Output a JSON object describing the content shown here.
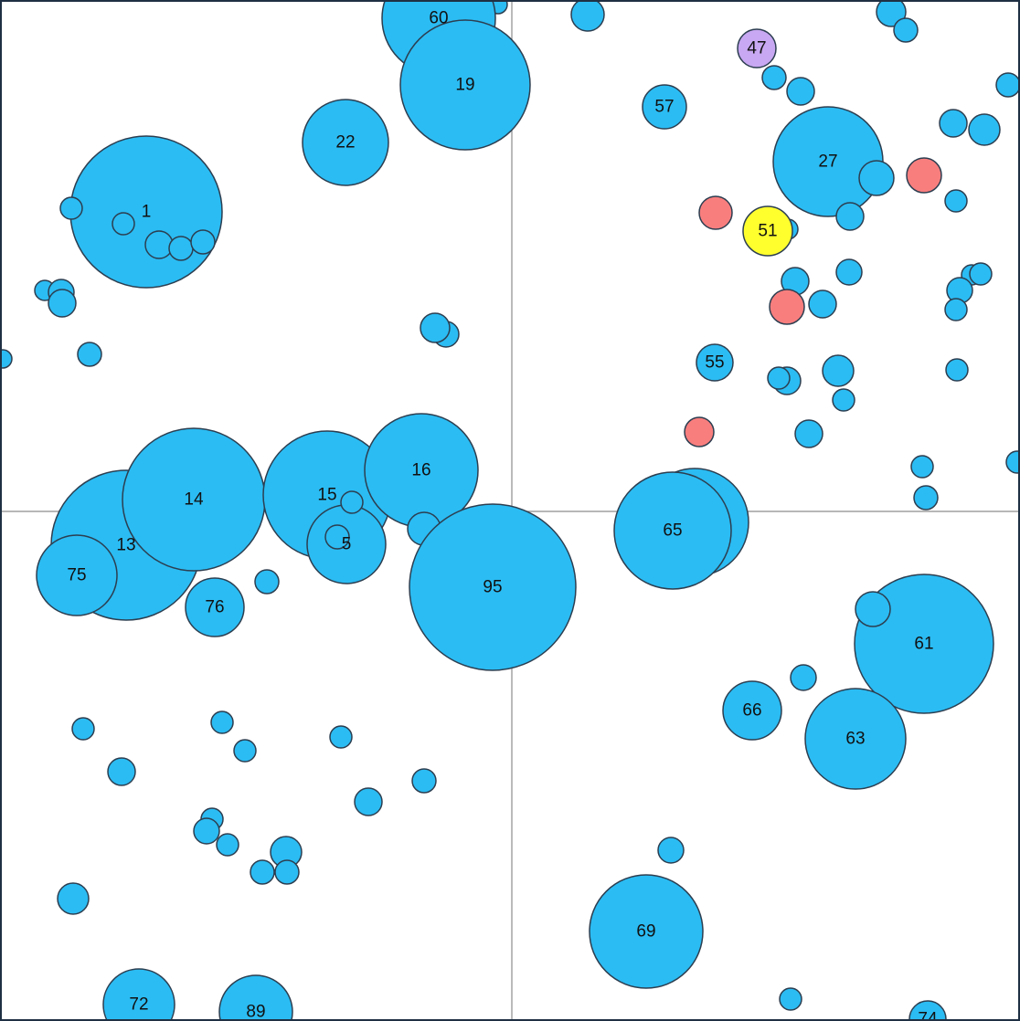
{
  "chart_data": {
    "type": "scatter",
    "variant": "bubble",
    "xlim": [
      0,
      1116
    ],
    "ylim": [
      0,
      1118
    ],
    "y_axis_direction": "down",
    "quadrant_lines": {
      "x": 560,
      "y": 560
    },
    "grid": false,
    "legend": "none",
    "colors": {
      "default": "#2BBCF3",
      "highlight_red": "#F87E7E",
      "highlight_yellow": "#FFFF2E",
      "highlight_purple": "#C8A8F2",
      "stroke": "#2C3E50",
      "quadrant_line": "#8C8C8C",
      "border": "#1F3044"
    },
    "points": [
      {
        "x": 545,
        "y": 5,
        "r": 10
      },
      {
        "x": 480,
        "y": 20,
        "r": 62,
        "label": "60"
      },
      {
        "x": 509,
        "y": 93,
        "r": 71,
        "label": "19"
      },
      {
        "x": 378,
        "y": 156,
        "r": 47,
        "label": "22"
      },
      {
        "x": 160,
        "y": 232,
        "r": 83,
        "label": "1"
      },
      {
        "x": 78,
        "y": 228,
        "r": 12
      },
      {
        "x": 135,
        "y": 245,
        "r": 12
      },
      {
        "x": 174,
        "y": 268,
        "r": 15
      },
      {
        "x": 198,
        "y": 272,
        "r": 13
      },
      {
        "x": 222,
        "y": 265,
        "r": 13
      },
      {
        "x": 49,
        "y": 318,
        "r": 11
      },
      {
        "x": 67,
        "y": 320,
        "r": 14
      },
      {
        "x": 68,
        "y": 332,
        "r": 15
      },
      {
        "x": 3,
        "y": 393,
        "r": 10
      },
      {
        "x": 98,
        "y": 388,
        "r": 13
      },
      {
        "x": 488,
        "y": 366,
        "r": 14
      },
      {
        "x": 476,
        "y": 359,
        "r": 16
      },
      {
        "x": 138,
        "y": 597,
        "r": 82,
        "label": "13"
      },
      {
        "x": 212,
        "y": 547,
        "r": 78,
        "label": "14"
      },
      {
        "x": 84,
        "y": 630,
        "r": 44,
        "label": "75"
      },
      {
        "x": 235,
        "y": 665,
        "r": 32,
        "label": "76"
      },
      {
        "x": 292,
        "y": 637,
        "r": 13
      },
      {
        "x": 358,
        "y": 542,
        "r": 70,
        "label": "15"
      },
      {
        "x": 379,
        "y": 596,
        "r": 43,
        "label": "5"
      },
      {
        "x": 385,
        "y": 550,
        "r": 12
      },
      {
        "x": 369,
        "y": 588,
        "r": 13
      },
      {
        "x": 461,
        "y": 515,
        "r": 62,
        "label": "16"
      },
      {
        "x": 464,
        "y": 579,
        "r": 18
      },
      {
        "x": 539,
        "y": 643,
        "r": 91,
        "label": "95"
      },
      {
        "x": 91,
        "y": 798,
        "r": 12
      },
      {
        "x": 243,
        "y": 791,
        "r": 12
      },
      {
        "x": 268,
        "y": 822,
        "r": 12
      },
      {
        "x": 373,
        "y": 807,
        "r": 12
      },
      {
        "x": 133,
        "y": 845,
        "r": 15
      },
      {
        "x": 464,
        "y": 855,
        "r": 13
      },
      {
        "x": 403,
        "y": 878,
        "r": 15
      },
      {
        "x": 232,
        "y": 897,
        "r": 12
      },
      {
        "x": 226,
        "y": 910,
        "r": 14
      },
      {
        "x": 249,
        "y": 925,
        "r": 12
      },
      {
        "x": 313,
        "y": 933,
        "r": 17
      },
      {
        "x": 314,
        "y": 955,
        "r": 13
      },
      {
        "x": 287,
        "y": 955,
        "r": 13
      },
      {
        "x": 80,
        "y": 984,
        "r": 17
      },
      {
        "x": 152,
        "y": 1100,
        "r": 39,
        "label": "72"
      },
      {
        "x": 280,
        "y": 1108,
        "r": 40,
        "label": "89"
      },
      {
        "x": 643,
        "y": 16,
        "r": 18
      },
      {
        "x": 975,
        "y": 13,
        "r": 16
      },
      {
        "x": 991,
        "y": 33,
        "r": 13
      },
      {
        "x": 828,
        "y": 53,
        "r": 21,
        "label": "47",
        "color": "highlight_purple"
      },
      {
        "x": 847,
        "y": 85,
        "r": 13
      },
      {
        "x": 876,
        "y": 100,
        "r": 15
      },
      {
        "x": 1103,
        "y": 93,
        "r": 13
      },
      {
        "x": 727,
        "y": 117,
        "r": 24,
        "label": "57"
      },
      {
        "x": 1043,
        "y": 135,
        "r": 15
      },
      {
        "x": 1077,
        "y": 142,
        "r": 17
      },
      {
        "x": 906,
        "y": 177,
        "r": 60,
        "label": "27"
      },
      {
        "x": 959,
        "y": 195,
        "r": 19
      },
      {
        "x": 1011,
        "y": 192,
        "r": 19,
        "color": "highlight_red"
      },
      {
        "x": 930,
        "y": 237,
        "r": 15
      },
      {
        "x": 1046,
        "y": 220,
        "r": 12
      },
      {
        "x": 783,
        "y": 233,
        "r": 18,
        "color": "highlight_red"
      },
      {
        "x": 862,
        "y": 251,
        "r": 11
      },
      {
        "x": 840,
        "y": 253,
        "r": 27,
        "label": "51",
        "color": "highlight_yellow"
      },
      {
        "x": 929,
        "y": 298,
        "r": 14
      },
      {
        "x": 870,
        "y": 308,
        "r": 15
      },
      {
        "x": 1063,
        "y": 301,
        "r": 11
      },
      {
        "x": 1073,
        "y": 300,
        "r": 12
      },
      {
        "x": 1050,
        "y": 318,
        "r": 14
      },
      {
        "x": 900,
        "y": 333,
        "r": 15
      },
      {
        "x": 861,
        "y": 336,
        "r": 19,
        "color": "highlight_red"
      },
      {
        "x": 1046,
        "y": 339,
        "r": 12
      },
      {
        "x": 782,
        "y": 397,
        "r": 20,
        "label": "55"
      },
      {
        "x": 917,
        "y": 406,
        "r": 17
      },
      {
        "x": 1047,
        "y": 405,
        "r": 12
      },
      {
        "x": 861,
        "y": 417,
        "r": 15
      },
      {
        "x": 852,
        "y": 414,
        "r": 12
      },
      {
        "x": 923,
        "y": 438,
        "r": 12
      },
      {
        "x": 885,
        "y": 475,
        "r": 15
      },
      {
        "x": 765,
        "y": 473,
        "r": 16,
        "color": "highlight_red"
      },
      {
        "x": 1009,
        "y": 511,
        "r": 12
      },
      {
        "x": 1113,
        "y": 506,
        "r": 12
      },
      {
        "x": 1013,
        "y": 545,
        "r": 13
      },
      {
        "x": 760,
        "y": 572,
        "r": 59
      },
      {
        "x": 736,
        "y": 581,
        "r": 64,
        "label": "65"
      },
      {
        "x": 1011,
        "y": 705,
        "r": 76,
        "label": "61"
      },
      {
        "x": 955,
        "y": 667,
        "r": 19
      },
      {
        "x": 879,
        "y": 742,
        "r": 14
      },
      {
        "x": 823,
        "y": 778,
        "r": 32,
        "label": "66"
      },
      {
        "x": 936,
        "y": 809,
        "r": 55,
        "label": "63"
      },
      {
        "x": 734,
        "y": 931,
        "r": 14
      },
      {
        "x": 707,
        "y": 1020,
        "r": 62,
        "label": "69"
      },
      {
        "x": 865,
        "y": 1094,
        "r": 12
      },
      {
        "x": 1015,
        "y": 1116,
        "r": 20,
        "label": "74"
      }
    ]
  }
}
